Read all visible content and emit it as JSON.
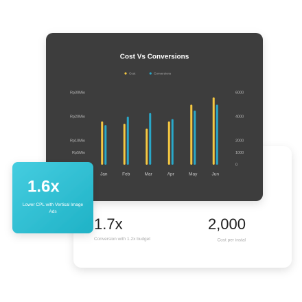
{
  "chart_data": {
    "type": "bar",
    "title": "Cost Vs Conversions",
    "categories": [
      "Jan",
      "Feb",
      "Mar",
      "Apr",
      "May",
      "Jun"
    ],
    "series": [
      {
        "name": "Cost",
        "color": "#f5c842",
        "values": [
          18000000,
          17000000,
          15000000,
          18000000,
          25000000,
          28000000
        ]
      },
      {
        "name": "Conversions",
        "color": "#29a8c9",
        "axis": "y2",
        "values": [
          3300,
          4000,
          4300,
          3800,
          4500,
          5000
        ]
      }
    ],
    "ylim": [
      0,
      30000000
    ],
    "yticks": [
      {
        "value": 30000000,
        "label": "Rp30Mio"
      },
      {
        "value": 20000000,
        "label": "Rp20Mio"
      },
      {
        "value": 10000000,
        "label": "Rp10Mio"
      },
      {
        "value": 5000000,
        "label": "Rp5Mio"
      }
    ],
    "y2lim": [
      0,
      6000
    ],
    "y2ticks": [
      6000,
      4000,
      2000,
      1000,
      0
    ],
    "grid": false,
    "legend": "top"
  },
  "badge": {
    "value": "1.6x",
    "caption": "Lower CPL with Vertical Image Ads"
  },
  "stats": [
    {
      "value": "1.7x",
      "caption": "Conversion with 1.2x budget"
    },
    {
      "value": "2,000",
      "caption": "Cost per instal"
    }
  ]
}
